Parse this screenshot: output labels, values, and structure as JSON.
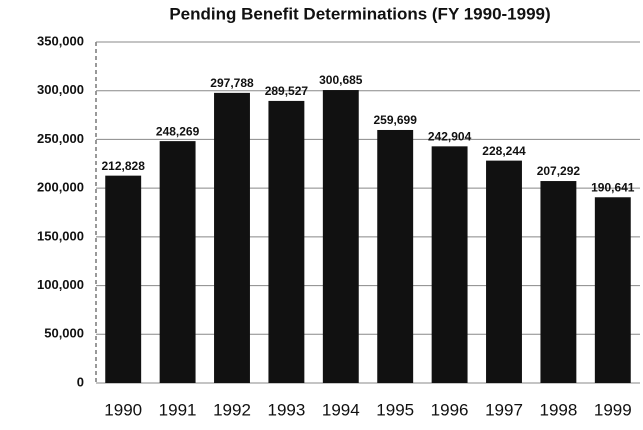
{
  "chart_data": {
    "type": "bar",
    "title": "Pending Benefit Determinations (FY 1990-1999)",
    "categories": [
      "1990",
      "1991",
      "1992",
      "1993",
      "1994",
      "1995",
      "1996",
      "1997",
      "1998",
      "1999"
    ],
    "values": [
      212828,
      248269,
      297788,
      289527,
      300685,
      259699,
      242904,
      228244,
      207292,
      190641
    ],
    "value_labels": [
      "212,828",
      "248,269",
      "297,788",
      "289,527",
      "300,685",
      "259,699",
      "242,904",
      "228,244",
      "207,292",
      "190,641"
    ],
    "color": "#111111",
    "ylim": [
      0,
      350000
    ],
    "yticks": [
      0,
      {
        "value": 50000,
        "label": "50,000"
      },
      {
        "value": 100000,
        "label": "100,000"
      },
      {
        "value": 150000,
        "label": "150,000"
      },
      {
        "value": 200000,
        "label": "200,000"
      },
      {
        "value": 250000,
        "label": "250,000"
      },
      {
        "value": 300000,
        "label": "300,000"
      },
      {
        "value": 350000,
        "label": "350,000"
      }
    ],
    "grid": true
  }
}
